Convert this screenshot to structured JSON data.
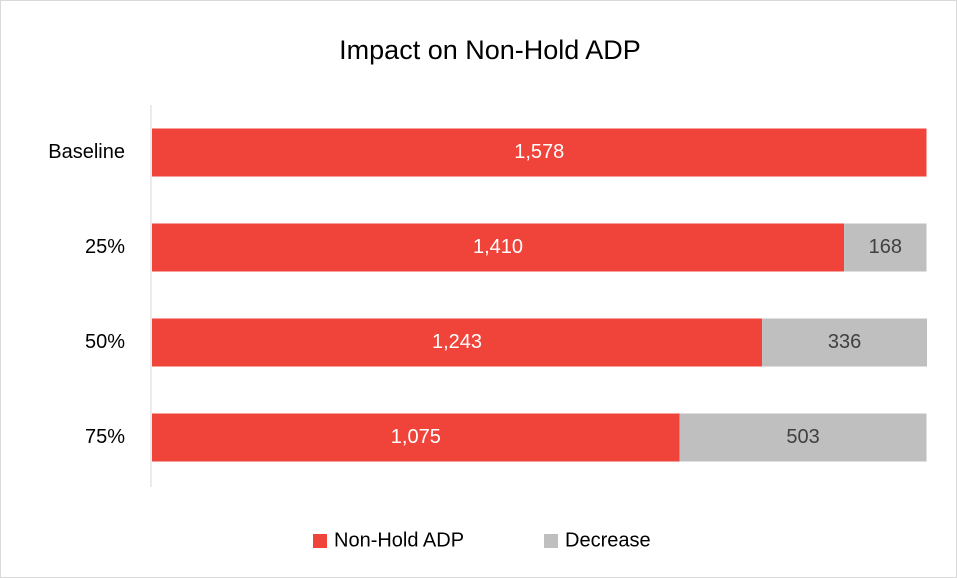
{
  "chart_data": {
    "type": "bar",
    "orientation": "horizontal",
    "stacked": true,
    "title": "Impact on Non-Hold ADP",
    "categories": [
      "Baseline",
      "25%",
      "50%",
      "75%"
    ],
    "series": [
      {
        "name": "Non-Hold ADP",
        "color": "#f0433a",
        "values": [
          1578,
          1410,
          1243,
          1075
        ],
        "value_labels": [
          "1,578",
          "1,410",
          "1,243",
          "1,075"
        ]
      },
      {
        "name": "Decrease",
        "color": "#bfbfbf",
        "values": [
          null,
          168,
          336,
          503
        ],
        "value_labels": [
          null,
          "168",
          "336",
          "503"
        ]
      }
    ],
    "legend": "bottom"
  }
}
